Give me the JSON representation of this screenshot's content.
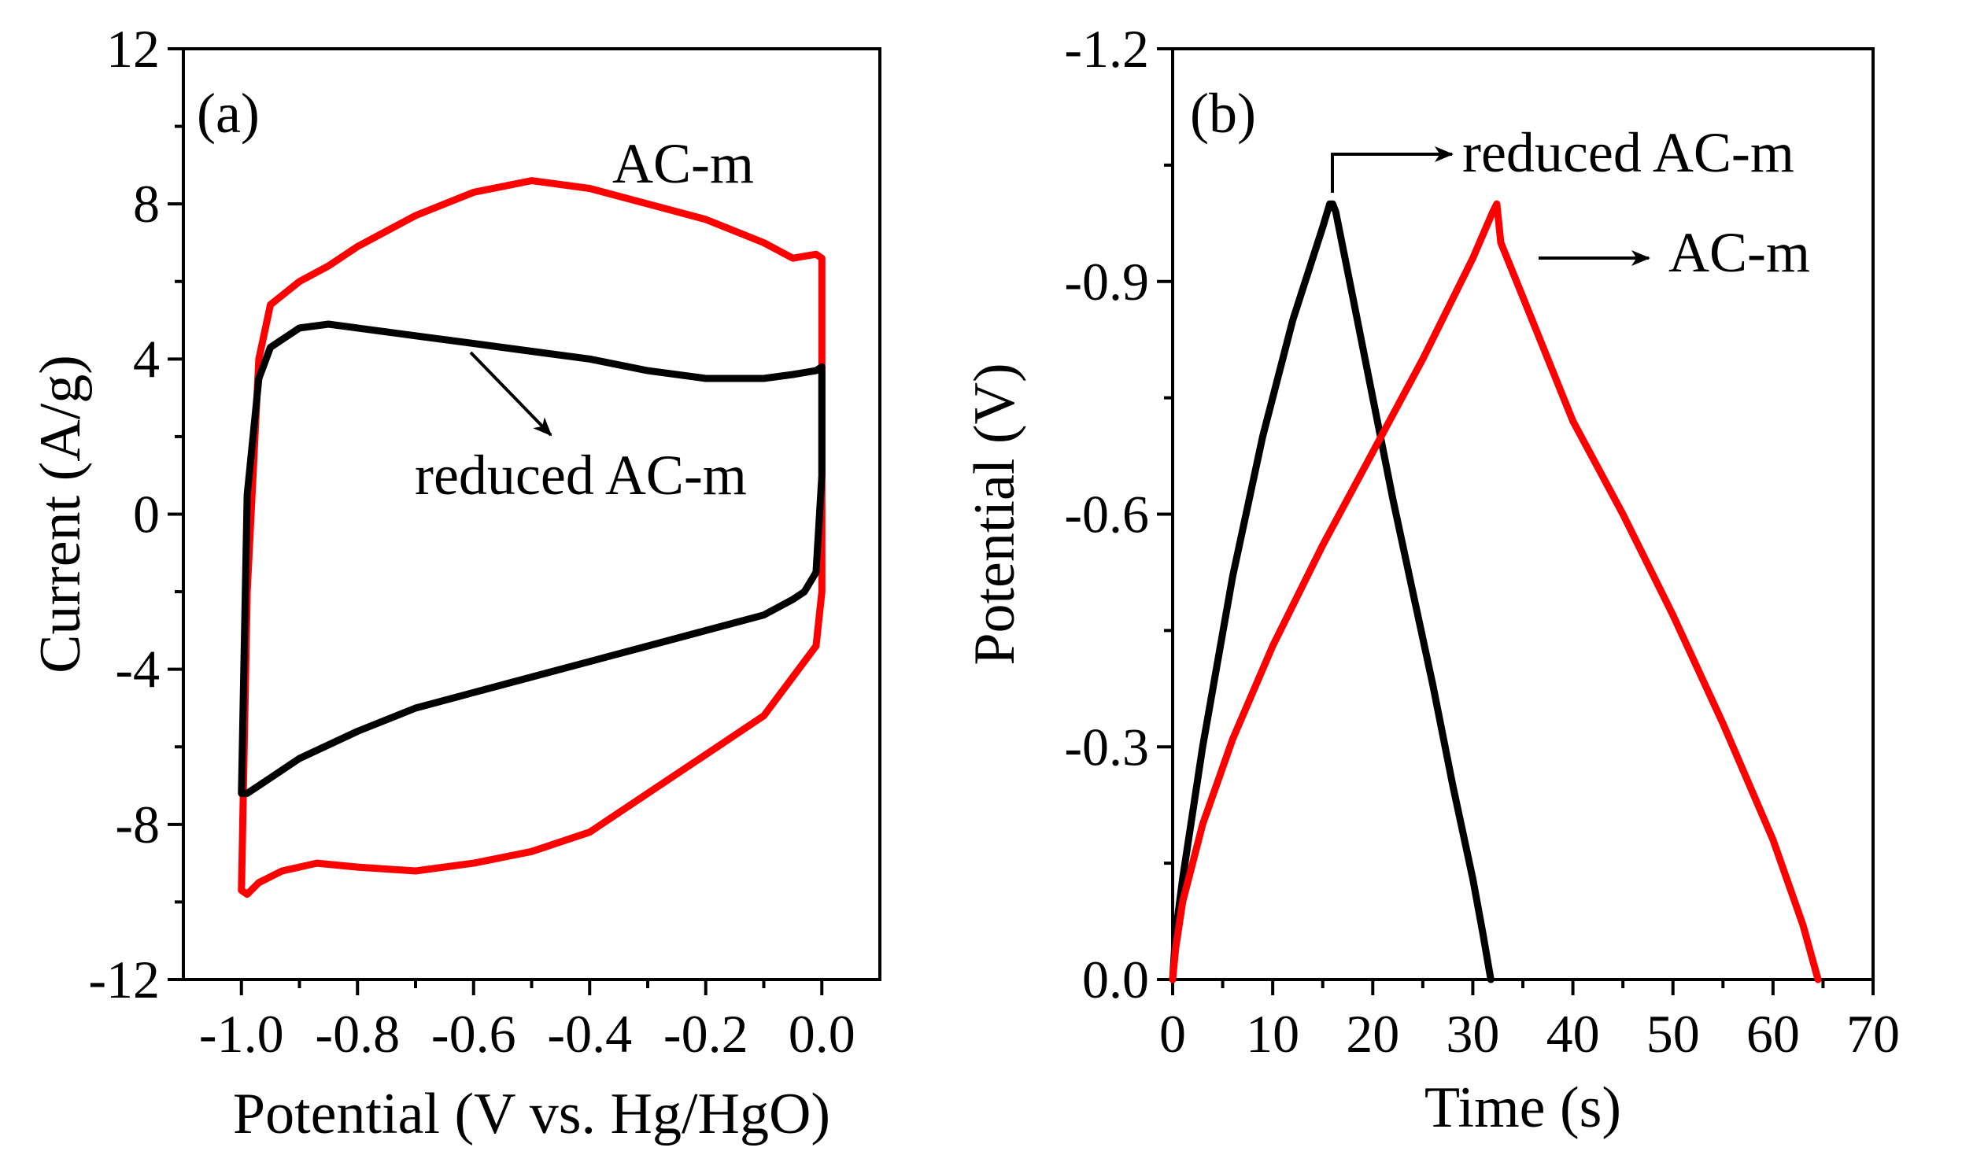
{
  "chart_data": [
    {
      "panel": "(a)",
      "type": "line",
      "title": "",
      "xlabel": "Potential (V vs. Hg/HgO)",
      "ylabel": "Current (A/g)",
      "xlim": [
        -1.1,
        0.1
      ],
      "ylim": [
        -12,
        12
      ],
      "xticks": [
        -1.0,
        -0.8,
        -0.6,
        -0.4,
        -0.2,
        0.0
      ],
      "xtick_labels": [
        "-1.0",
        "-0.8",
        "-0.6",
        "-0.4",
        "-0.2",
        "0.0"
      ],
      "yticks": [
        -12,
        -8,
        -4,
        0,
        4,
        8,
        12
      ],
      "ytick_labels": [
        "-12",
        "-8",
        "-4",
        "0",
        "4",
        "8",
        "12"
      ],
      "grid": false,
      "annotations": [
        {
          "text": "AC-m",
          "series": "AC-m"
        },
        {
          "text": "reduced AC-m",
          "series": "reduced AC-m"
        }
      ],
      "series": [
        {
          "name": "AC-m",
          "color": "#ff0000",
          "x": [
            -1.0,
            -0.99,
            -0.97,
            -0.95,
            -0.9,
            -0.85,
            -0.8,
            -0.7,
            -0.6,
            -0.5,
            -0.4,
            -0.3,
            -0.2,
            -0.1,
            -0.05,
            -0.01,
            0.0,
            0.0,
            -0.01,
            -0.03,
            -0.05,
            -0.1,
            -0.2,
            -0.3,
            -0.4,
            -0.5,
            -0.6,
            -0.7,
            -0.8,
            -0.87,
            -0.93,
            -0.97,
            -0.99,
            -1.0,
            -1.0
          ],
          "y": [
            -9.7,
            -2.0,
            4.0,
            5.4,
            6.0,
            6.4,
            6.9,
            7.7,
            8.3,
            8.6,
            8.4,
            8.0,
            7.6,
            7.0,
            6.6,
            6.7,
            6.6,
            -2.0,
            -3.4,
            -3.8,
            -4.2,
            -5.2,
            -6.2,
            -7.2,
            -8.2,
            -8.7,
            -9.0,
            -9.2,
            -9.1,
            -9.0,
            -9.2,
            -9.5,
            -9.8,
            -9.7,
            -9.7
          ]
        },
        {
          "name": "reduced AC-m",
          "color": "#000000",
          "x": [
            -1.0,
            -0.99,
            -0.97,
            -0.95,
            -0.9,
            -0.85,
            -0.8,
            -0.7,
            -0.6,
            -0.5,
            -0.4,
            -0.3,
            -0.2,
            -0.1,
            -0.05,
            -0.01,
            0.0,
            0.0,
            -0.01,
            -0.03,
            -0.05,
            -0.1,
            -0.2,
            -0.3,
            -0.4,
            -0.5,
            -0.6,
            -0.7,
            -0.8,
            -0.9,
            -0.95,
            -0.99,
            -1.0
          ],
          "y": [
            -7.2,
            0.5,
            3.5,
            4.3,
            4.8,
            4.9,
            4.8,
            4.6,
            4.4,
            4.2,
            4.0,
            3.7,
            3.5,
            3.5,
            3.6,
            3.7,
            3.8,
            1.0,
            -1.5,
            -2.0,
            -2.2,
            -2.6,
            -3.0,
            -3.4,
            -3.8,
            -4.2,
            -4.6,
            -5.0,
            -5.6,
            -6.3,
            -6.8,
            -7.2,
            -7.2
          ]
        }
      ]
    },
    {
      "panel": "(b)",
      "type": "line",
      "title": "",
      "xlabel": "Time (s)",
      "ylabel": "Potential (V)",
      "xlim": [
        0,
        70
      ],
      "ylim": [
        0,
        -1.2
      ],
      "xticks": [
        0,
        10,
        20,
        30,
        40,
        50,
        60,
        70
      ],
      "xtick_labels": [
        "0",
        "10",
        "20",
        "30",
        "40",
        "50",
        "60",
        "70"
      ],
      "yticks": [
        0.0,
        -0.3,
        -0.6,
        -0.9,
        -1.2
      ],
      "ytick_labels": [
        "0.0",
        "-0.3",
        "-0.6",
        "-0.9",
        "-1.2"
      ],
      "grid": false,
      "annotations": [
        {
          "text": "reduced AC-m",
          "series": "reduced AC-m"
        },
        {
          "text": "AC-m",
          "series": "AC-m"
        }
      ],
      "series": [
        {
          "name": "reduced AC-m",
          "color": "#000000",
          "x": [
            0,
            0.3,
            1,
            3,
            6,
            9,
            12,
            15,
            15.7,
            16,
            16.3,
            18,
            20,
            22,
            24,
            26,
            28,
            30,
            31,
            31.8
          ],
          "y": [
            0.0,
            -0.06,
            -0.13,
            -0.3,
            -0.52,
            -0.7,
            -0.85,
            -0.97,
            -1.0,
            -1.0,
            -0.99,
            -0.88,
            -0.75,
            -0.62,
            -0.5,
            -0.38,
            -0.25,
            -0.13,
            -0.06,
            0.0
          ]
        },
        {
          "name": "AC-m",
          "color": "#ff0000",
          "x": [
            0,
            0.3,
            1,
            3,
            6,
            10,
            15,
            20,
            25,
            30,
            32,
            32.4,
            32.8,
            35,
            40,
            45,
            50,
            55,
            60,
            63,
            64.5
          ],
          "y": [
            0.0,
            -0.04,
            -0.1,
            -0.2,
            -0.31,
            -0.43,
            -0.56,
            -0.68,
            -0.8,
            -0.93,
            -0.99,
            -1.0,
            -0.95,
            -0.88,
            -0.72,
            -0.6,
            -0.47,
            -0.33,
            -0.18,
            -0.07,
            0.0
          ]
        }
      ]
    }
  ]
}
